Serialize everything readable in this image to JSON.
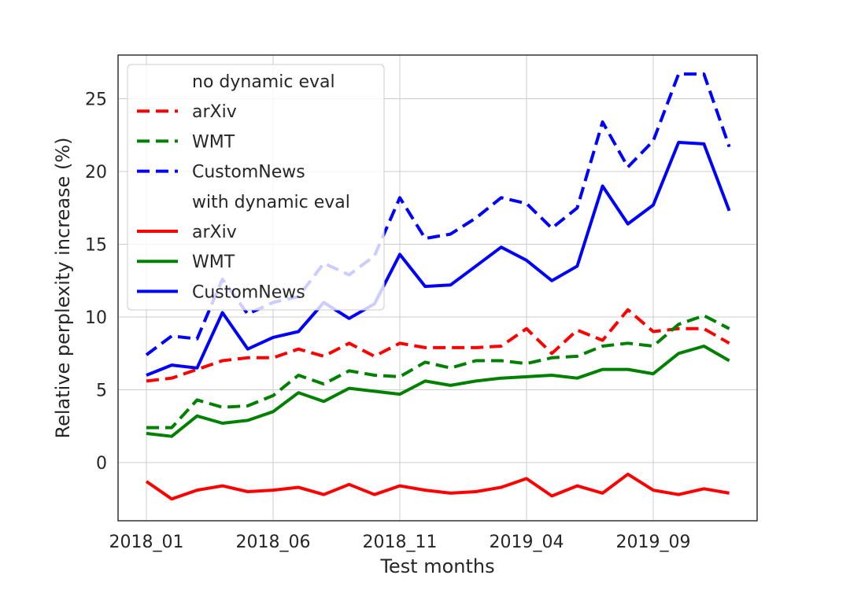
{
  "chart_data": {
    "type": "line",
    "title": "",
    "xlabel": "Test months",
    "ylabel": "Relative perplexity increase (%)",
    "x": [
      "2018_01",
      "2018_02",
      "2018_03",
      "2018_04",
      "2018_05",
      "2018_06",
      "2018_07",
      "2018_08",
      "2018_09",
      "2018_10",
      "2018_11",
      "2018_12",
      "2019_01",
      "2019_02",
      "2019_03",
      "2019_04",
      "2019_05",
      "2019_06",
      "2019_07",
      "2019_08",
      "2019_09",
      "2019_10",
      "2019_11",
      "2019_12"
    ],
    "x_tick_labels": [
      "2018_01",
      "2018_06",
      "2018_11",
      "2019_04",
      "2019_09"
    ],
    "y_ticks": [
      0,
      5,
      10,
      15,
      20,
      25
    ],
    "ylim": [
      -4,
      28
    ],
    "grid": true,
    "legend_position": "top-left",
    "legend_groups": [
      {
        "heading": "no dynamic eval",
        "style": "dashed",
        "entries": [
          "arXiv",
          "WMT",
          "CustomNews"
        ]
      },
      {
        "heading": "with dynamic eval",
        "style": "solid",
        "entries": [
          "arXiv",
          "WMT",
          "CustomNews"
        ]
      }
    ],
    "series": [
      {
        "name": "arXiv",
        "group": "no dynamic eval",
        "style": "dashed",
        "color": "#ff0000",
        "values": [
          5.6,
          5.8,
          6.4,
          7.0,
          7.2,
          7.2,
          7.8,
          7.3,
          8.2,
          7.3,
          8.2,
          7.9,
          7.9,
          7.9,
          8.0,
          9.2,
          7.5,
          9.1,
          8.4,
          10.5,
          9.0,
          9.2,
          9.2,
          8.2
        ]
      },
      {
        "name": "WMT",
        "group": "no dynamic eval",
        "style": "dashed",
        "color": "#008000",
        "values": [
          2.4,
          2.4,
          4.3,
          3.8,
          3.9,
          4.6,
          6.0,
          5.4,
          6.3,
          6.0,
          5.9,
          6.9,
          6.5,
          7.0,
          7.0,
          6.8,
          7.2,
          7.3,
          8.0,
          8.2,
          8.0,
          9.5,
          10.1,
          9.2
        ]
      },
      {
        "name": "CustomNews",
        "group": "no dynamic eval",
        "style": "dashed",
        "color": "#0000ff",
        "values": [
          7.4,
          8.7,
          8.5,
          12.6,
          10.2,
          11.0,
          11.4,
          13.7,
          12.9,
          14.2,
          18.2,
          15.4,
          15.7,
          16.8,
          18.2,
          17.8,
          16.1,
          17.5,
          23.4,
          20.3,
          22.1,
          26.7,
          26.7,
          21.7
        ]
      },
      {
        "name": "arXiv",
        "group": "with dynamic eval",
        "style": "solid",
        "color": "#ff0000",
        "values": [
          -1.3,
          -2.5,
          -1.9,
          -1.6,
          -2.0,
          -1.9,
          -1.7,
          -2.2,
          -1.5,
          -2.2,
          -1.6,
          -1.9,
          -2.1,
          -2.0,
          -1.7,
          -1.1,
          -2.3,
          -1.6,
          -2.1,
          -0.8,
          -1.9,
          -2.2,
          -1.8,
          -2.1
        ]
      },
      {
        "name": "WMT",
        "group": "with dynamic eval",
        "style": "solid",
        "color": "#008000",
        "values": [
          2.0,
          1.8,
          3.2,
          2.7,
          2.9,
          3.5,
          4.8,
          4.2,
          5.1,
          4.9,
          4.7,
          5.6,
          5.3,
          5.6,
          5.8,
          5.9,
          6.0,
          5.8,
          6.4,
          6.4,
          6.1,
          7.5,
          8.0,
          7.0
        ]
      },
      {
        "name": "CustomNews",
        "group": "with dynamic eval",
        "style": "solid",
        "color": "#0000ff",
        "values": [
          6.0,
          6.7,
          6.5,
          10.3,
          7.8,
          8.6,
          9.0,
          11.0,
          9.9,
          10.9,
          14.3,
          12.1,
          12.2,
          13.5,
          14.8,
          13.9,
          12.5,
          13.5,
          19.0,
          16.4,
          17.7,
          22.0,
          21.9,
          17.3
        ]
      }
    ]
  }
}
